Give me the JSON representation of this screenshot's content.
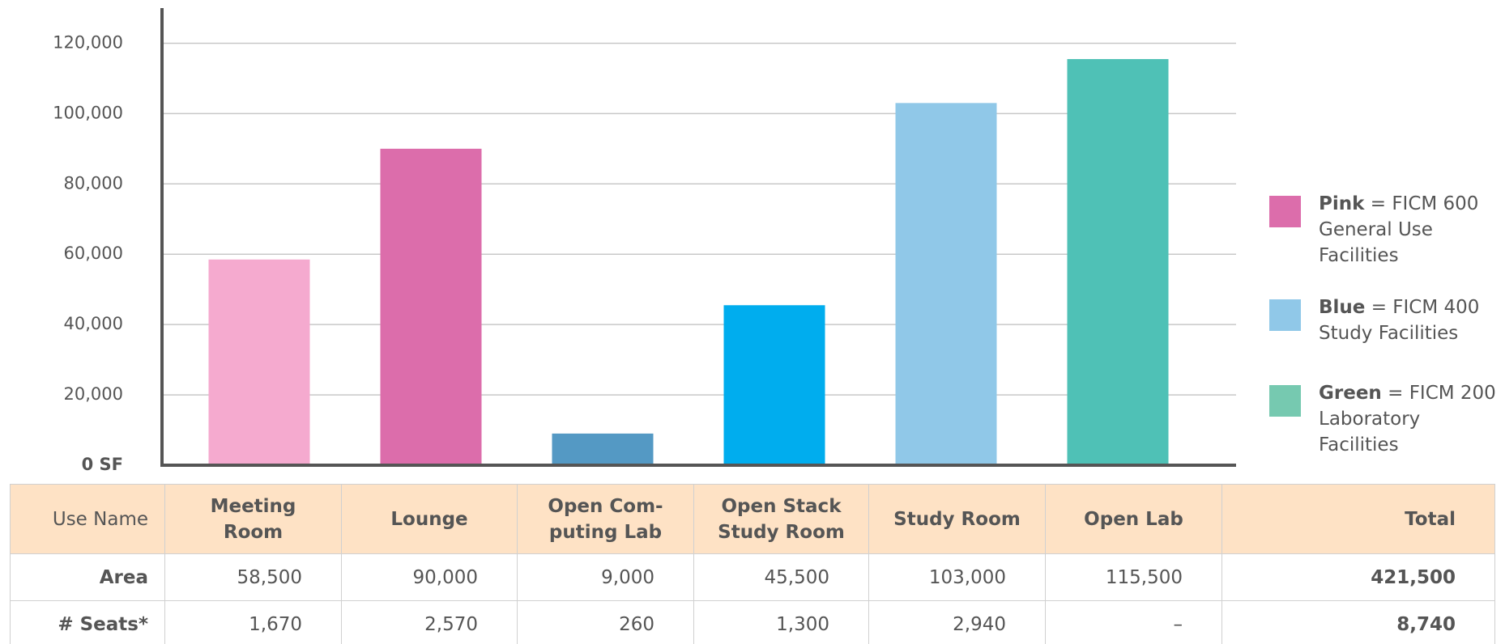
{
  "chart_data": {
    "type": "bar",
    "categories": [
      "Meeting Room",
      "Lounge",
      "Open Computing Lab",
      "Open Stack Study Room",
      "Study Room",
      "Open Lab"
    ],
    "values": [
      58500,
      90000,
      9000,
      45500,
      103000,
      115500
    ],
    "colors": [
      "#f5aacf",
      "#dc6dab",
      "#5499c4",
      "#00adee",
      "#90c8e8",
      "#4fc1b6"
    ],
    "ylim": [
      0,
      130000
    ],
    "yticks": [
      {
        "value": 0,
        "label": "0 SF"
      },
      {
        "value": 20000,
        "label": "20,000"
      },
      {
        "value": 40000,
        "label": "40,000"
      },
      {
        "value": 60000,
        "label": "60,000"
      },
      {
        "value": 80000,
        "label": "80,000"
      },
      {
        "value": 100000,
        "label": "100,000"
      },
      {
        "value": 120000,
        "label": "120,000"
      }
    ],
    "grid": true,
    "legend": [
      {
        "label": "Pink",
        "text": "= FICM 600 General Use Facilities",
        "color": "#dc6dab"
      },
      {
        "label": "Blue",
        "text": "= FICM 400 Study Facilities",
        "color": "#90c8e8"
      },
      {
        "label": "Green",
        "text": "= FICM 200 Laboratory Facilities",
        "color": "#76c9b0"
      }
    ]
  },
  "table": {
    "header": [
      "Use Name",
      "Meeting\nRoom",
      "Lounge",
      "Open Com-\nputing Lab",
      "Open Stack\nStudy Room",
      "Study Room",
      "Open Lab",
      "Total"
    ],
    "rows": [
      [
        "Area",
        "58,500",
        "90,000",
        "9,000",
        "45,500",
        "103,000",
        "115,500",
        "421,500"
      ],
      [
        "# Seats*",
        "1,670",
        "2,570",
        "260",
        "1,300",
        "2,940",
        "–",
        "8,740"
      ]
    ]
  }
}
